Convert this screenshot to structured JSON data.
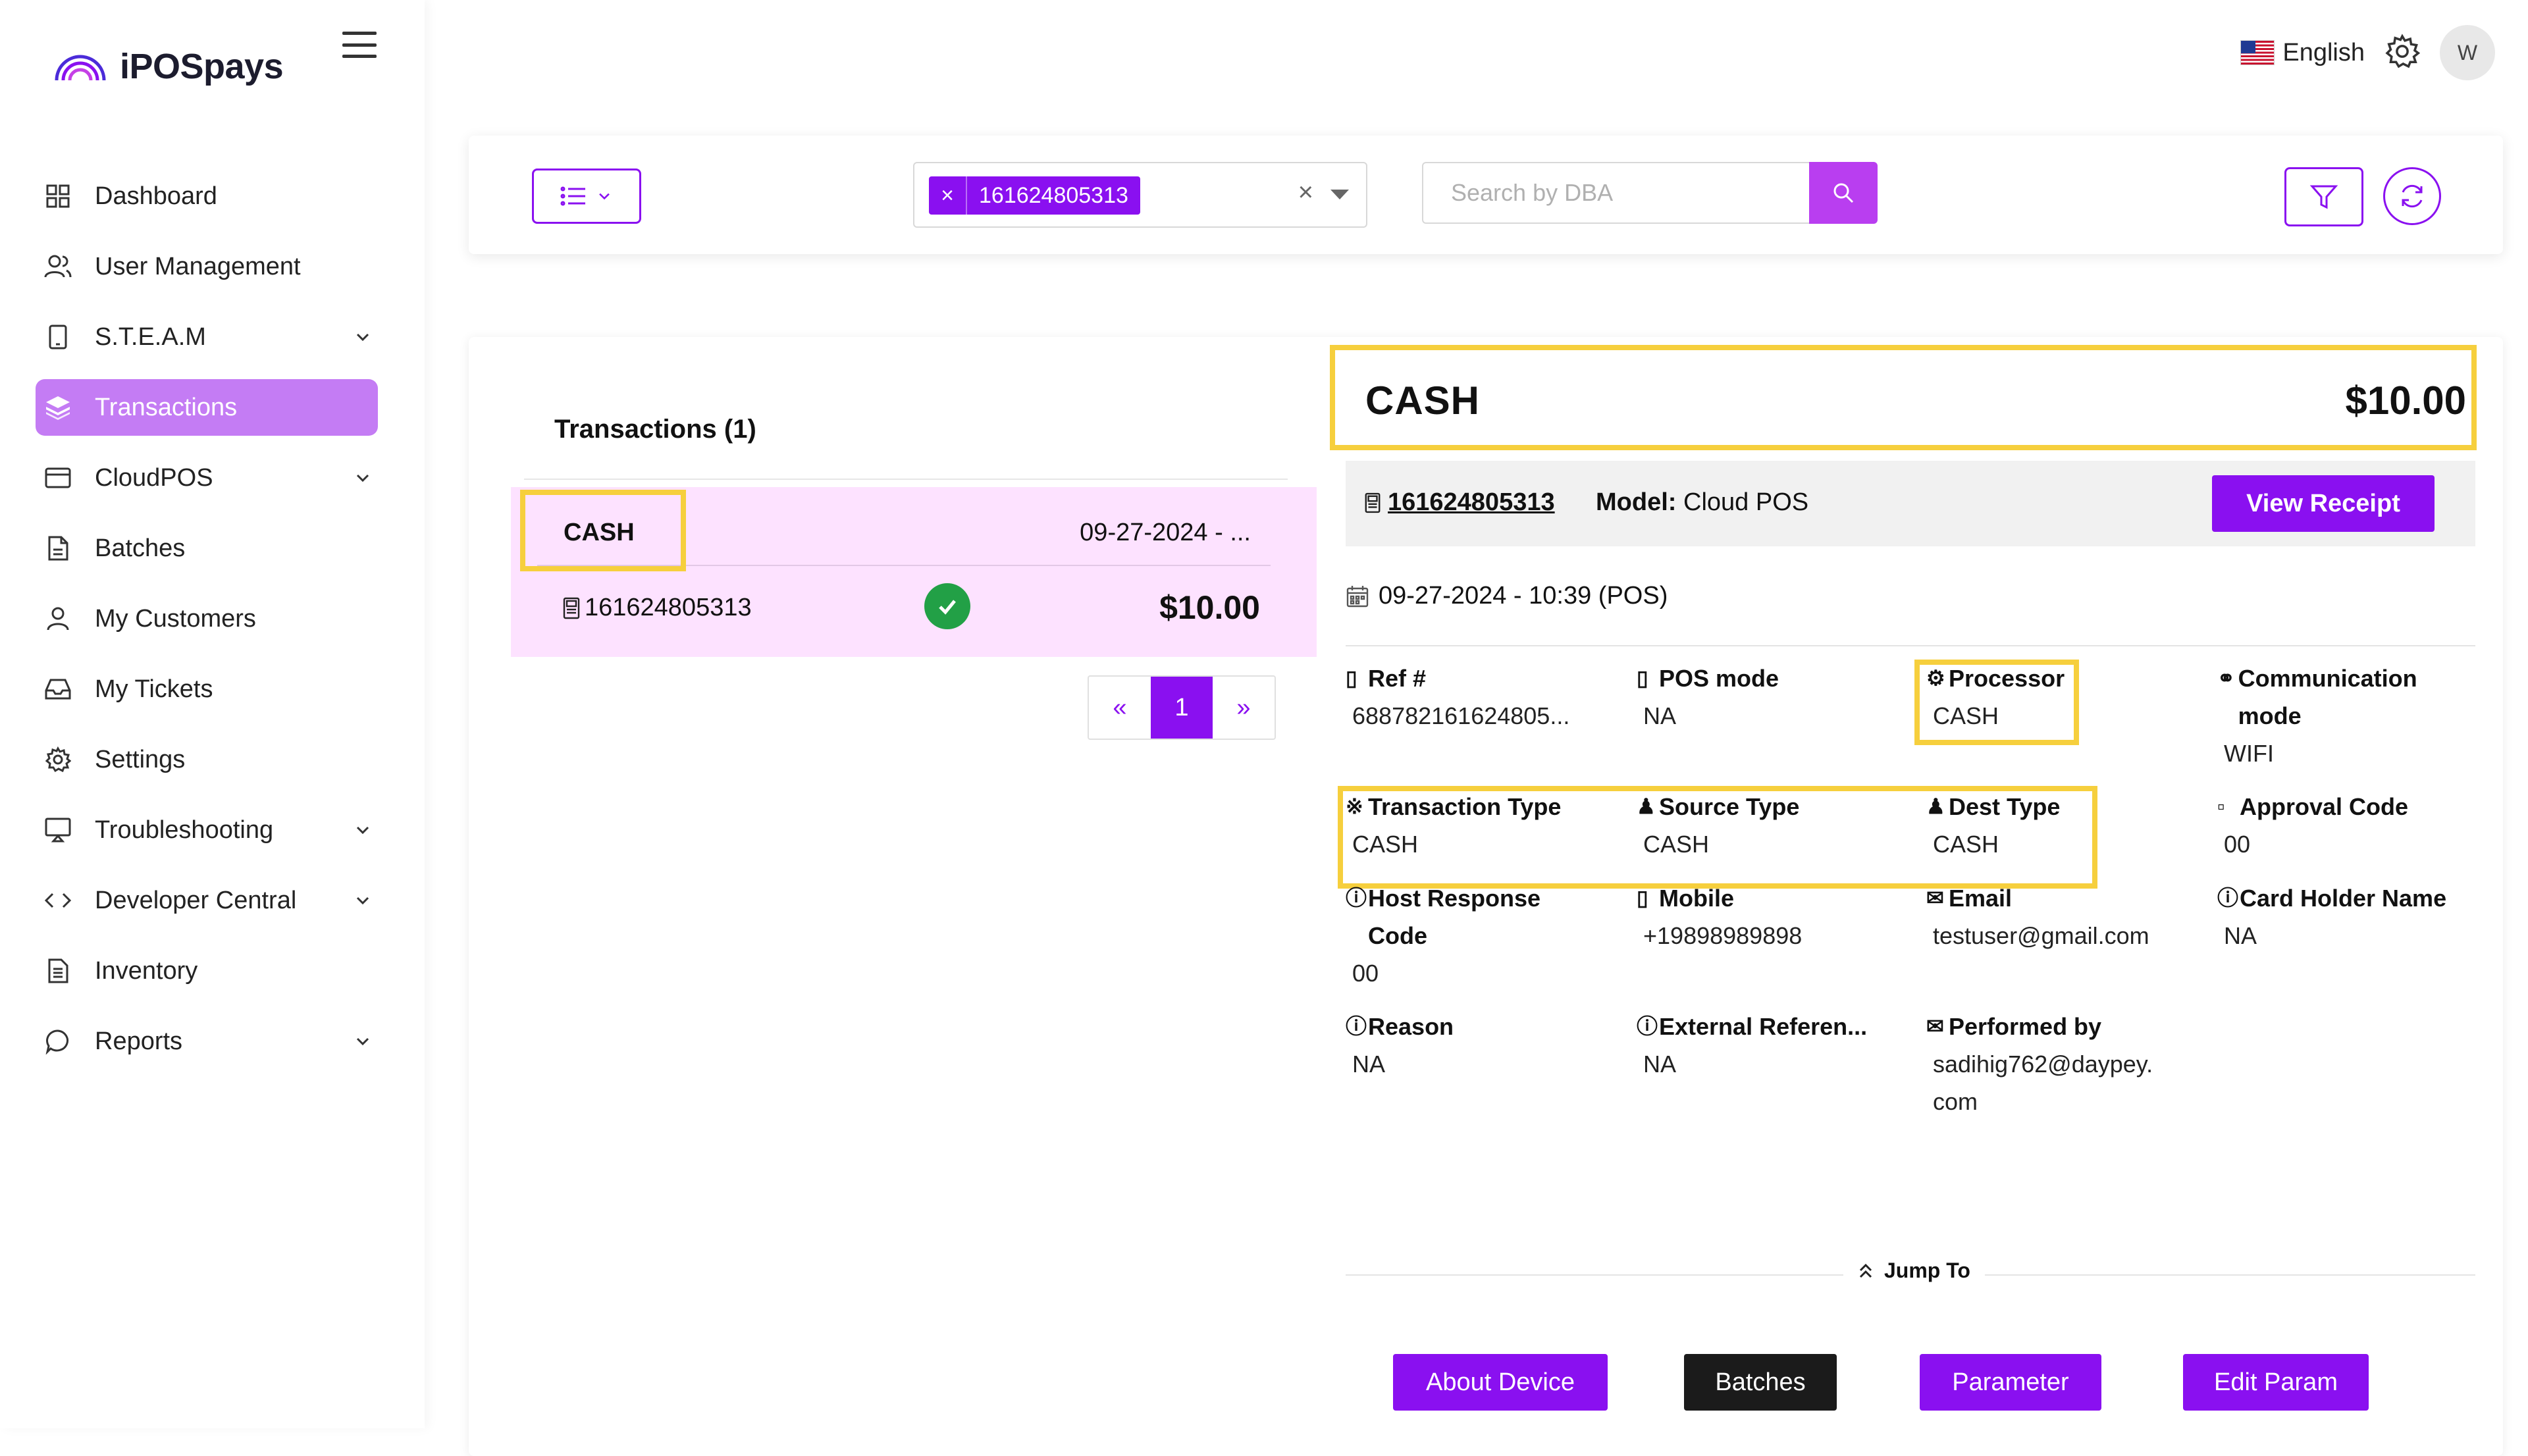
{
  "app": {
    "logo_text": "iPOSpays"
  },
  "topbar": {
    "language": "English",
    "avatar_initial": "W"
  },
  "sidebar": {
    "items": [
      {
        "label": "Dashboard",
        "icon": "grid-icon",
        "chevron": false,
        "active": false
      },
      {
        "label": "User Management",
        "icon": "users-icon",
        "chevron": false,
        "active": false
      },
      {
        "label": "S.T.E.A.M",
        "icon": "tablet-icon",
        "chevron": true,
        "active": false
      },
      {
        "label": "Transactions",
        "icon": "layers-icon",
        "chevron": false,
        "active": true
      },
      {
        "label": "CloudPOS",
        "icon": "card-icon",
        "chevron": true,
        "active": false
      },
      {
        "label": "Batches",
        "icon": "file-icon",
        "chevron": false,
        "active": false
      },
      {
        "label": "My Customers",
        "icon": "user-icon",
        "chevron": false,
        "active": false
      },
      {
        "label": "My Tickets",
        "icon": "inbox-icon",
        "chevron": false,
        "active": false
      },
      {
        "label": "Settings",
        "icon": "gear-icon",
        "chevron": false,
        "active": false
      },
      {
        "label": "Troubleshooting",
        "icon": "monitor-icon",
        "chevron": true,
        "active": false
      },
      {
        "label": "Developer Central",
        "icon": "code-icon",
        "chevron": true,
        "active": false
      },
      {
        "label": "Inventory",
        "icon": "document-icon",
        "chevron": false,
        "active": false
      },
      {
        "label": "Reports",
        "icon": "chat-icon",
        "chevron": true,
        "active": false
      }
    ]
  },
  "filters": {
    "selected_terminal": "161624805313",
    "clear_symbol": "×",
    "chip_remove": "×",
    "search_placeholder": "Search by DBA"
  },
  "list": {
    "title": "Transactions (1)",
    "items": [
      {
        "type": "CASH",
        "date": "09-27-2024 - ...",
        "terminal_id": "161624805313",
        "amount": "$10.00",
        "status": "success"
      }
    ],
    "pager": {
      "prev": "«",
      "current": "1",
      "next": "»"
    }
  },
  "detail": {
    "type": "CASH",
    "amount": "$10.00",
    "terminal_id": "161624805313",
    "model_label": "Model:",
    "model_value": "Cloud POS",
    "view_receipt": "View Receipt",
    "datetime": "09-27-2024 - 10:39 (POS)",
    "fields": {
      "ref": {
        "label": "Ref #",
        "value": "688782161624805..."
      },
      "pos_mode": {
        "label": "POS mode",
        "value": "NA"
      },
      "processor": {
        "label": "Processor",
        "value": "CASH"
      },
      "communication": {
        "label": "Communication mode",
        "value": "WIFI"
      },
      "transaction_type": {
        "label": "Transaction Type",
        "value": "CASH"
      },
      "source_type": {
        "label": "Source Type",
        "value": "CASH"
      },
      "dest_type": {
        "label": "Dest Type",
        "value": "CASH"
      },
      "approval_code": {
        "label": "Approval Code",
        "value": "00"
      },
      "host_response": {
        "label": "Host Response Code",
        "value": "00"
      },
      "mobile": {
        "label": "Mobile",
        "value": "+19898989898"
      },
      "email": {
        "label": "Email",
        "value": "testuser@gmail.com"
      },
      "card_holder": {
        "label": "Card Holder Name",
        "value": "NA"
      },
      "reason": {
        "label": "Reason",
        "value": "NA"
      },
      "external_ref": {
        "label": "External Referen...",
        "value": "NA"
      },
      "performed_by": {
        "label": "Performed by",
        "value": "sadihig762@daypey.com"
      }
    },
    "jump_to": "Jump To",
    "buttons": {
      "about_device": "About Device",
      "batches": "Batches",
      "parameter": "Parameter",
      "edit_param": "Edit Param"
    }
  },
  "colors": {
    "accent": "#8a10f0",
    "active_nav": "#c47cf4",
    "row_highlight": "#fde2ff",
    "annotation": "#f6cf3d",
    "success": "#22a046",
    "dark_button": "#1b1b1b"
  }
}
